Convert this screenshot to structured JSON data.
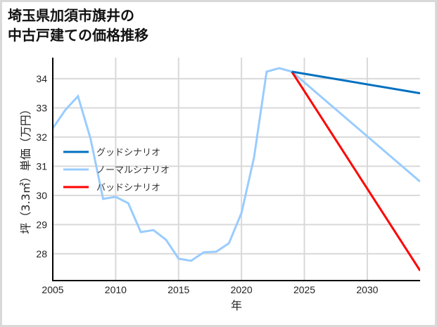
{
  "title": {
    "line1": "埼玉県加須市旗井の",
    "line2": "中古戸建ての価格推移"
  },
  "colors": {
    "good": "#0070c0",
    "normal": "#99ccff",
    "bad": "#ff0000",
    "grid": "#d9d9d9",
    "axis": "#000000",
    "border": "#d9d9d9"
  },
  "chart_data": {
    "type": "line",
    "title": "埼玉県加須市旗井の中古戸建ての価格推移",
    "xlabel": "年",
    "ylabel": "坪（3.3㎡）単価（万円）",
    "xlim": [
      2005,
      2034.2
    ],
    "ylim": [
      27.08,
      34.72
    ],
    "x_ticks": [
      2005,
      2010,
      2015,
      2020,
      2025,
      2030
    ],
    "y_ticks": [
      28,
      29,
      30,
      31,
      32,
      33,
      34
    ],
    "grid": true,
    "legend_position": "left-center",
    "series": [
      {
        "name": "グッドシナリオ",
        "color": "#0070c0",
        "x": [
          2024,
          2034.2
        ],
        "values": [
          34.24,
          33.5
        ]
      },
      {
        "name": "ノーマルシナリオ",
        "color": "#99ccff",
        "x": [
          2005,
          2006,
          2007,
          2008,
          2009,
          2010,
          2011,
          2012,
          2013,
          2014,
          2015,
          2016,
          2017,
          2018,
          2019,
          2020,
          2021,
          2022,
          2023,
          2024,
          2034.2
        ],
        "values": [
          32.3,
          32.93,
          33.4,
          31.95,
          29.88,
          29.95,
          29.73,
          28.74,
          28.81,
          28.48,
          27.83,
          27.76,
          28.05,
          28.07,
          28.36,
          29.4,
          31.3,
          34.24,
          34.36,
          34.24,
          30.47
        ]
      },
      {
        "name": "バッドシナリオ",
        "color": "#ff0000",
        "x": [
          2024,
          2034.2
        ],
        "values": [
          34.24,
          27.42
        ]
      }
    ]
  }
}
